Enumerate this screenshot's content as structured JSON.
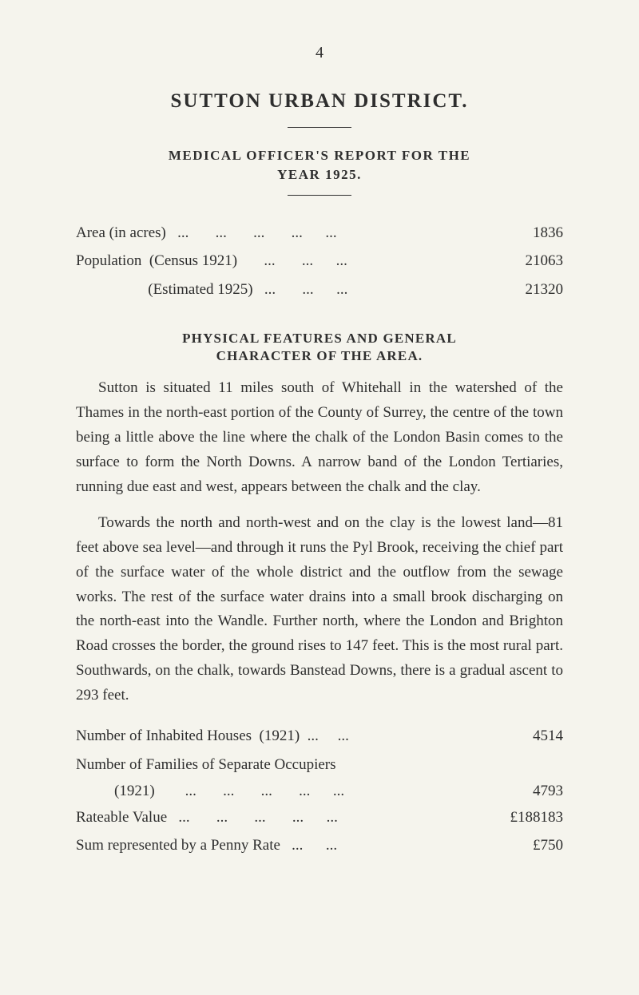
{
  "page": {
    "number": "4",
    "background_color": "#f5f4ed",
    "text_color": "#2e2e2e",
    "body_fontsize": 19,
    "line_height": 1.63
  },
  "header": {
    "main_title": "SUTTON URBAN DISTRICT.",
    "subtitle_line1": "MEDICAL OFFICER'S REPORT FOR THE",
    "subtitle_line2": "YEAR 1925."
  },
  "top_data": {
    "rows": [
      {
        "label": "Area (in acres)   ...       ...       ...       ...      ...",
        "value": "1836"
      },
      {
        "label": "Population  (Census 1921)       ...       ...      ...",
        "value": "21063"
      },
      {
        "label": "                   (Estimated 1925)   ...       ...      ...",
        "value": "21320"
      }
    ]
  },
  "section": {
    "heading_line1": "PHYSICAL FEATURES AND GENERAL",
    "heading_line2": "CHARACTER OF THE AREA.",
    "para1": "Sutton is situated 11 miles south of Whitehall in the watershed of the Thames in the north-east portion of the County of Surrey, the centre of the town being a little above the line where the chalk of the London Basin comes to the surface to form the North Downs. A narrow band of the London Tertiaries, running due east and west, appears between the chalk and the clay.",
    "para2": "Towards the north and north-west and on the clay is the lowest land—81 feet above sea level—and through it runs the Pyl Brook, receiving the chief part of the surface water of the whole district and the outflow from the sewage works. The rest of the surface water drains into a small brook discharging on the north-east into the Wandle. Further north, where the London and Brighton Road crosses the border, the ground rises to 147 feet. This is the most rural part. Southwards, on the chalk, towards Banstead Downs, there is a gradual ascent to 293 feet."
  },
  "bottom_data": {
    "row1": {
      "label": "Number of Inhabited Houses  (1921)  ...     ...",
      "value": "4514"
    },
    "row2_line1": "Number of Families of Separate Occupiers",
    "row2_line2": {
      "label": "(1921)        ...       ...       ...       ...      ...",
      "value": "4793"
    },
    "row3": {
      "label": "Rateable Value   ...       ...       ...       ...      ...",
      "value": "£188183"
    },
    "row4": {
      "label": "Sum represented by a Penny Rate   ...      ...",
      "value": "£750"
    }
  }
}
